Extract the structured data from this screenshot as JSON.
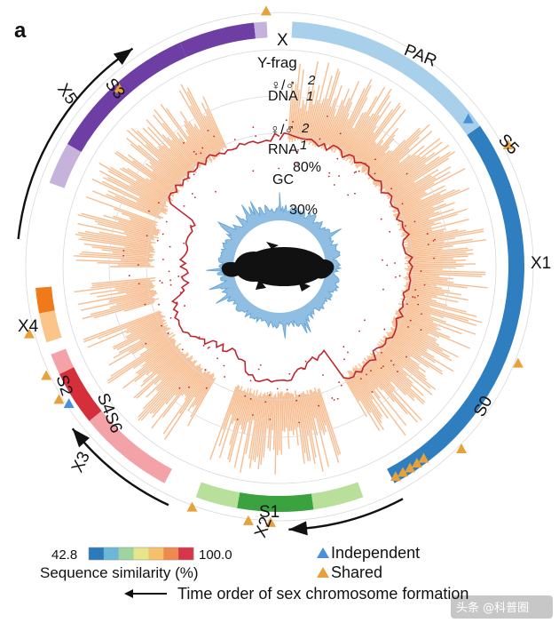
{
  "panel_label": "a",
  "chart_data": {
    "type": "circos",
    "title": "",
    "chromosome_segments": [
      {
        "name": "X",
        "label": "X"
      },
      {
        "name": "PAR",
        "label": "PAR"
      },
      {
        "name": "X1",
        "label": "X1"
      },
      {
        "name": "X2",
        "label": "X2"
      },
      {
        "name": "X3",
        "label": "X3"
      },
      {
        "name": "X4",
        "label": "X4"
      },
      {
        "name": "X5",
        "label": "X5"
      }
    ],
    "strata": [
      "S0",
      "S1",
      "S2",
      "S3",
      "S4",
      "S5",
      "S6"
    ],
    "strata_labels": {
      "s0": "S0",
      "s1": "S1",
      "s2": "S2",
      "s3": "S3",
      "s4s6": "S4S6",
      "s5": "S5"
    },
    "tracks": [
      {
        "name": "Y-frag",
        "label": "Y-frag"
      },
      {
        "name": "DNA",
        "label": "DNA",
        "ratio_label": "♀/♂",
        "ticks": [
          "2",
          "1"
        ]
      },
      {
        "name": "RNA",
        "label": "RNA",
        "ratio_label": "♀/♂",
        "ticks": [
          "2",
          "1"
        ]
      },
      {
        "name": "GC",
        "label": "GC",
        "ticks": [
          "80%",
          "30%"
        ]
      }
    ],
    "colorbar": {
      "title": "Sequence similarity (%)",
      "min": 42.8,
      "min_label": "42.8",
      "max": 100.0,
      "max_label": "100.0",
      "colors": [
        "#2b7bba",
        "#6bb8d6",
        "#9fd3a0",
        "#e6e58c",
        "#f5c16a",
        "#ee8a4f",
        "#d7354a"
      ]
    },
    "legend": [
      {
        "label": "Independent",
        "marker": "triangle",
        "color": "#4a90d9"
      },
      {
        "label": "Shared",
        "marker": "triangle",
        "color": "#e8a13a"
      }
    ],
    "arrow_caption": "Time order of sex chromosome formation",
    "colors": {
      "x_purple": "#6f3ea4",
      "x_purple_light": "#c5b3dc",
      "par_blue": "#a9d0ea",
      "x1_blue": "#2f7fc0",
      "x2_green": "#3aa23e",
      "x2_green_light": "#b8e09a",
      "x3_pink": "#f3a3a8",
      "x3_red": "#d62f3c",
      "x4_orange": "#f07a1a",
      "x4_orange_light": "#fbc58a",
      "dna_orange": "#f6b27c",
      "rna_red": "#c0272d",
      "gc_blue": "#6aa8d8",
      "shared_tri": "#e8a13a",
      "independent_tri": "#4a90d9"
    }
  },
  "watermark": "头条 @科普圈"
}
